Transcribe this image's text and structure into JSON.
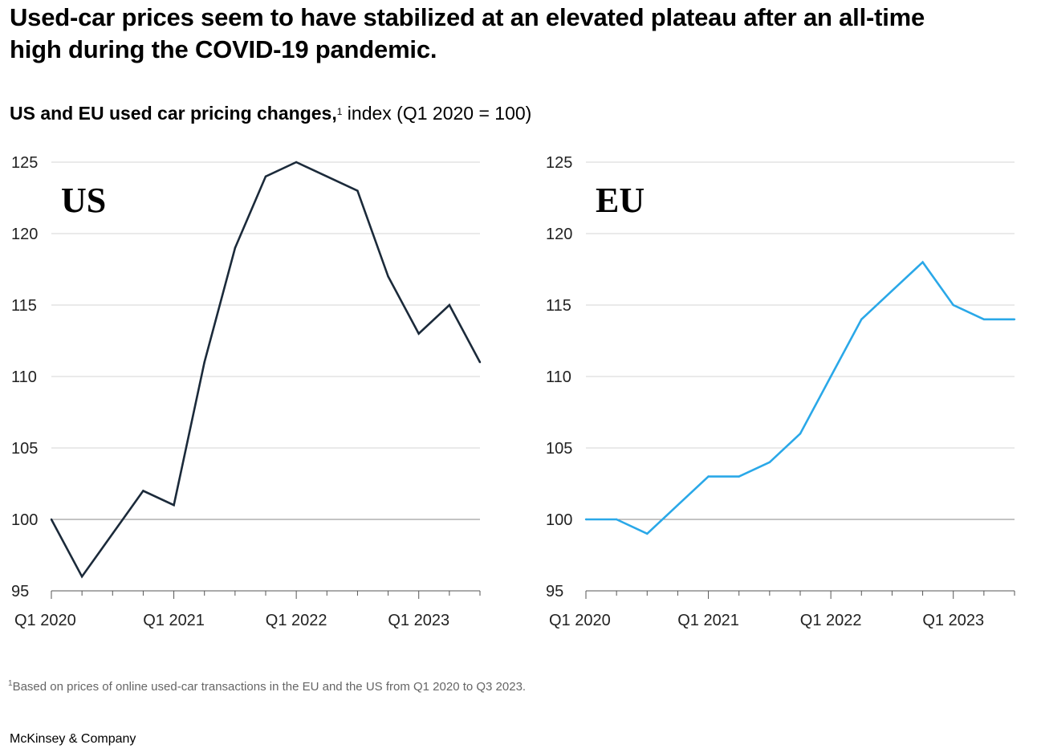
{
  "headline": "Used-car prices seem to have stabilized at an elevated plateau after an all-time high during the COVID-19 pandemic.",
  "subtitle": {
    "bold": "US and EU used car pricing changes,",
    "marker": "1",
    "rest": " index (Q1 2020 = 100)"
  },
  "footnote": {
    "marker": "1",
    "text": "Based on prices of online used-car transactions in the EU and the US from Q1 2020 to Q3 2023."
  },
  "brand": "McKinsey & Company",
  "colors": {
    "us_line": "#1b2a3a",
    "eu_line": "#2aa8e8",
    "grid": "#d4d4d4",
    "baseline": "#8a8a8a"
  },
  "chart_data": [
    {
      "type": "line",
      "label": "US",
      "x": [
        "Q1 2020",
        "Q2 2020",
        "Q3 2020",
        "Q4 2020",
        "Q1 2021",
        "Q2 2021",
        "Q3 2021",
        "Q4 2021",
        "Q1 2022",
        "Q2 2022",
        "Q3 2022",
        "Q4 2022",
        "Q1 2023",
        "Q2 2023",
        "Q3 2023"
      ],
      "values": [
        100,
        96,
        99,
        102,
        101,
        111,
        119,
        124,
        125,
        124,
        123,
        117,
        113,
        115,
        111
      ],
      "ylim": [
        95,
        125
      ],
      "yticks": [
        95,
        100,
        105,
        110,
        115,
        120,
        125
      ],
      "xtick_labels": [
        "Q1 2020",
        "Q1 2021",
        "Q1 2022",
        "Q1 2023"
      ],
      "grid": true
    },
    {
      "type": "line",
      "label": "EU",
      "x": [
        "Q1 2020",
        "Q2 2020",
        "Q3 2020",
        "Q4 2020",
        "Q1 2021",
        "Q2 2021",
        "Q3 2021",
        "Q4 2021",
        "Q1 2022",
        "Q2 2022",
        "Q3 2022",
        "Q4 2022",
        "Q1 2023",
        "Q2 2023",
        "Q3 2023"
      ],
      "values": [
        100,
        100,
        99,
        101,
        103,
        103,
        104,
        106,
        110,
        114,
        116,
        118,
        115,
        114,
        114
      ],
      "ylim": [
        95,
        125
      ],
      "yticks": [
        95,
        100,
        105,
        110,
        115,
        120,
        125
      ],
      "xtick_labels": [
        "Q1 2020",
        "Q1 2021",
        "Q1 2022",
        "Q1 2023"
      ],
      "grid": true
    }
  ]
}
